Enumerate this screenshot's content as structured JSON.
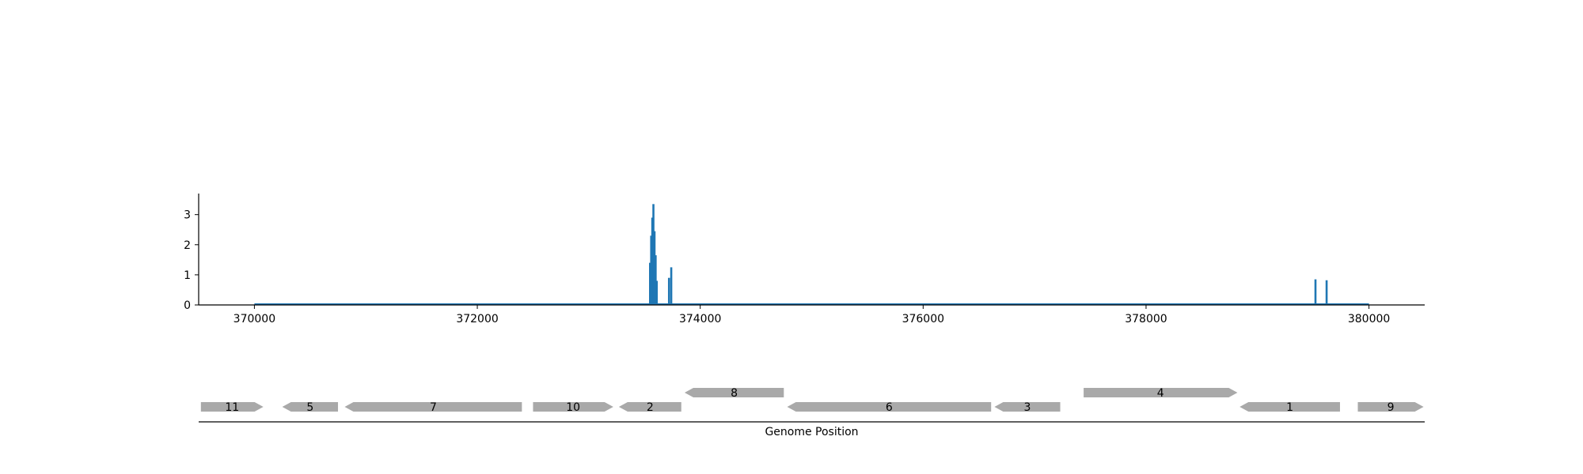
{
  "chart_data": {
    "type": "bar",
    "title": "",
    "xlabel": "Genome Position",
    "ylabel": "",
    "xlim": [
      369500,
      380500
    ],
    "ylim": [
      0,
      3.7
    ],
    "grid": false,
    "colors": {
      "bars": "#1f77b4",
      "genes": "#a9a9a9",
      "axis": "#000000"
    },
    "x_ticks": [
      {
        "value": 370000,
        "label": "370000"
      },
      {
        "value": 372000,
        "label": "372000"
      },
      {
        "value": 374000,
        "label": "374000"
      },
      {
        "value": 376000,
        "label": "376000"
      },
      {
        "value": 378000,
        "label": "378000"
      },
      {
        "value": 380000,
        "label": "380000"
      }
    ],
    "y_ticks": [
      {
        "value": 0,
        "label": "0"
      },
      {
        "value": 1,
        "label": "1"
      },
      {
        "value": 2,
        "label": "2"
      },
      {
        "value": 3,
        "label": "3"
      }
    ],
    "coverage_range": [
      370000,
      380000
    ],
    "bars": [
      {
        "x": 373550,
        "y": 1.4
      },
      {
        "x": 373560,
        "y": 2.3
      },
      {
        "x": 373570,
        "y": 2.9
      },
      {
        "x": 373580,
        "y": 3.35
      },
      {
        "x": 373590,
        "y": 2.45
      },
      {
        "x": 373600,
        "y": 1.65
      },
      {
        "x": 373610,
        "y": 0.8
      },
      {
        "x": 373720,
        "y": 0.9
      },
      {
        "x": 373740,
        "y": 1.25
      },
      {
        "x": 379520,
        "y": 0.85
      },
      {
        "x": 379620,
        "y": 0.82
      }
    ],
    "genes": [
      {
        "label": "11",
        "start": 369520,
        "end": 370080,
        "strand": 1,
        "row": 0
      },
      {
        "label": "5",
        "start": 370250,
        "end": 370750,
        "strand": -1,
        "row": 0
      },
      {
        "label": "7",
        "start": 370810,
        "end": 372400,
        "strand": -1,
        "row": 0
      },
      {
        "label": "10",
        "start": 372500,
        "end": 373220,
        "strand": 1,
        "row": 0
      },
      {
        "label": "2",
        "start": 373270,
        "end": 373830,
        "strand": -1,
        "row": 0
      },
      {
        "label": "8",
        "start": 373860,
        "end": 374750,
        "strand": -1,
        "row": 1
      },
      {
        "label": "6",
        "start": 374780,
        "end": 376610,
        "strand": -1,
        "row": 0
      },
      {
        "label": "3",
        "start": 376640,
        "end": 377230,
        "strand": -1,
        "row": 0
      },
      {
        "label": "4",
        "start": 377440,
        "end": 378820,
        "strand": 1,
        "row": 1
      },
      {
        "label": "1",
        "start": 378840,
        "end": 379740,
        "strand": -1,
        "row": 0
      },
      {
        "label": "9",
        "start": 379900,
        "end": 380490,
        "strand": 1,
        "row": 0
      }
    ]
  }
}
